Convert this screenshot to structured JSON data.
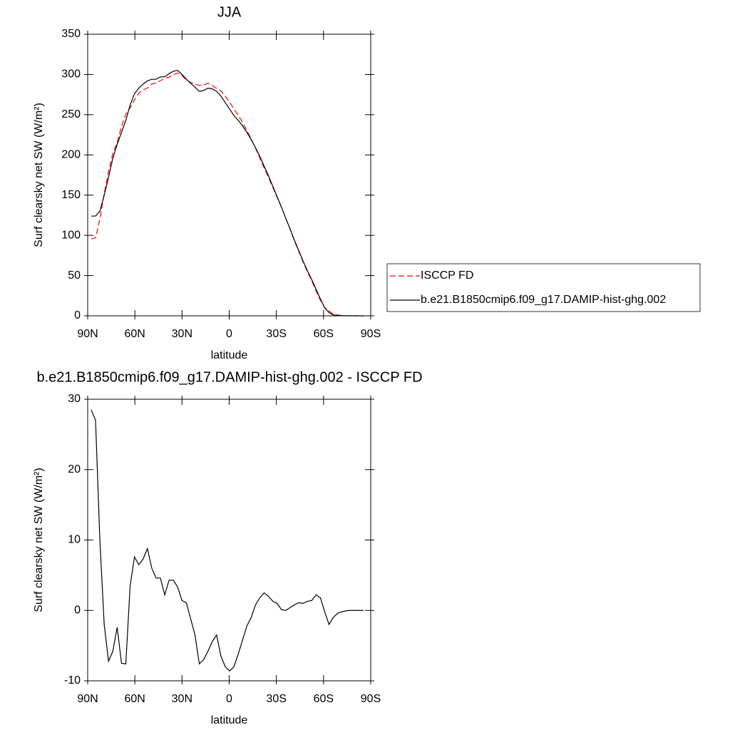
{
  "chart_data": [
    {
      "type": "line",
      "title": "JJA",
      "xlabel": "latitude",
      "ylabel": "Surf clearsky net SW (W/m²)",
      "xlim": [
        90,
        -90
      ],
      "ylim": [
        0,
        350
      ],
      "xticks": [
        {
          "value": 90,
          "label": "90N"
        },
        {
          "value": 60,
          "label": "60N"
        },
        {
          "value": 30,
          "label": "30N"
        },
        0,
        {
          "value": -30,
          "label": "30S"
        },
        {
          "value": -60,
          "label": "60S"
        },
        {
          "value": -90,
          "label": "90S"
        }
      ],
      "yticks": [
        0,
        50,
        100,
        150,
        200,
        250,
        300,
        350
      ],
      "legend": "right",
      "x": [
        87.75,
        85,
        82.25,
        79.5,
        76.75,
        74,
        71.25,
        68.5,
        65.75,
        63,
        60.25,
        57.5,
        54.75,
        52,
        49.25,
        46.5,
        43.75,
        41,
        38.25,
        35.5,
        32.75,
        30,
        27.25,
        24.5,
        21.75,
        19,
        16.25,
        13.5,
        10.75,
        8,
        5.25,
        2.5,
        -0.25,
        -3,
        -5.75,
        -8.5,
        -11.25,
        -14,
        -16.75,
        -19.5,
        -22.25,
        -25,
        -27.75,
        -30.5,
        -33.25,
        -36,
        -38.75,
        -41.5,
        -44.25,
        -47,
        -49.75,
        -52.5,
        -55.25,
        -58,
        -60.75,
        -63.5,
        -66.25,
        -69,
        -71.75,
        -74.5,
        -77.25,
        -80,
        -82.75,
        -85.5
      ],
      "series": [
        {
          "name": "ISCCP FD",
          "color": "#ff0000",
          "dashed": true,
          "values": [
            95.5,
            97,
            120,
            152,
            179.2,
            201.8,
            215.4,
            235.5,
            250.6,
            258.5,
            268.4,
            276.5,
            280.7,
            283.2,
            288,
            289.4,
            292.4,
            294.8,
            296.7,
            299.7,
            301.7,
            298.6,
            292.9,
            290.2,
            287.5,
            286.6,
            287,
            288.8,
            286.4,
            282.5,
            279.5,
            273,
            265.6,
            257,
            249.2,
            240.2,
            230.2,
            220,
            208.2,
            196.2,
            183.5,
            172,
            159.7,
            147,
            134.9,
            121,
            107.6,
            93.2,
            79.9,
            67,
            54.7,
            43.6,
            30.8,
            19.2,
            10.2,
            6,
            2,
            0.9,
            0.4,
            0.05,
            0,
            0,
            0,
            0
          ]
        },
        {
          "name": "b.e21.B1850cmip6.f09_g17.DAMIP-hist-ghg.002",
          "color": "#000000",
          "dashed": false,
          "values": [
            124,
            124,
            130,
            150,
            172,
            196,
            213,
            228,
            243,
            262,
            276,
            283,
            288,
            292,
            294,
            294,
            297,
            297,
            301,
            304,
            305,
            300,
            294,
            289,
            284,
            279,
            280,
            283,
            282,
            279,
            273,
            265,
            257,
            249,
            243,
            236,
            228,
            219,
            209,
            198,
            186,
            174,
            161,
            148,
            135,
            121,
            108,
            94,
            81,
            68,
            56,
            45,
            33,
            21,
            10,
            4,
            1,
            0.5,
            0.2,
            0,
            0,
            0,
            0,
            0
          ]
        }
      ]
    },
    {
      "type": "line",
      "title": "b.e21.B1850cmip6.f09_g17.DAMIP-hist-ghg.002 - ISCCP FD",
      "xlabel": "latitude",
      "ylabel": "Surf clearsky net SW (W/m²)",
      "xlim": [
        90,
        -90
      ],
      "ylim": [
        -10,
        30
      ],
      "xticks": [
        {
          "value": 90,
          "label": "90N"
        },
        {
          "value": 60,
          "label": "60N"
        },
        {
          "value": 30,
          "label": "30N"
        },
        0,
        {
          "value": -30,
          "label": "30S"
        },
        {
          "value": -60,
          "label": "60S"
        },
        {
          "value": -90,
          "label": "90S"
        }
      ],
      "yticks": [
        -10,
        0,
        10,
        20,
        30
      ],
      "x": [
        87.75,
        85,
        82.25,
        79.5,
        76.75,
        74,
        71.25,
        68.5,
        65.75,
        63,
        60.25,
        57.5,
        54.75,
        52,
        49.25,
        46.5,
        43.75,
        41,
        38.25,
        35.5,
        32.75,
        30,
        27.25,
        24.5,
        21.75,
        19,
        16.25,
        13.5,
        10.75,
        8,
        5.25,
        2.5,
        -0.25,
        -3,
        -5.75,
        -8.5,
        -11.25,
        -14,
        -16.75,
        -19.5,
        -22.25,
        -25,
        -27.75,
        -30.5,
        -33.25,
        -36,
        -38.75,
        -41.5,
        -44.25,
        -47,
        -49.75,
        -52.5,
        -55.25,
        -58,
        -60.75,
        -63.5,
        -66.25,
        -69,
        -71.75,
        -74.5,
        -77.25,
        -80,
        -82.75,
        -85.5
      ],
      "series": [
        {
          "color": "#000000",
          "dashed": false,
          "values": [
            28.5,
            27,
            10,
            -2,
            -7.2,
            -5.8,
            -2.4,
            -7.5,
            -7.6,
            3.5,
            7.6,
            6.5,
            7.3,
            8.8,
            6,
            4.6,
            4.6,
            2.2,
            4.3,
            4.3,
            3.3,
            1.4,
            1.1,
            -1.2,
            -3.5,
            -7.6,
            -7,
            -5.8,
            -4.4,
            -3.5,
            -6.5,
            -8,
            -8.6,
            -8,
            -6.2,
            -4.2,
            -2.2,
            -1,
            0.8,
            1.8,
            2.5,
            2,
            1.3,
            1,
            0.1,
            0,
            0.4,
            0.8,
            1.1,
            1,
            1.3,
            1.4,
            2.2,
            1.8,
            -0.2,
            -2,
            -1,
            -0.4,
            -0.2,
            -0.05,
            0,
            0,
            0,
            0
          ]
        }
      ]
    }
  ]
}
